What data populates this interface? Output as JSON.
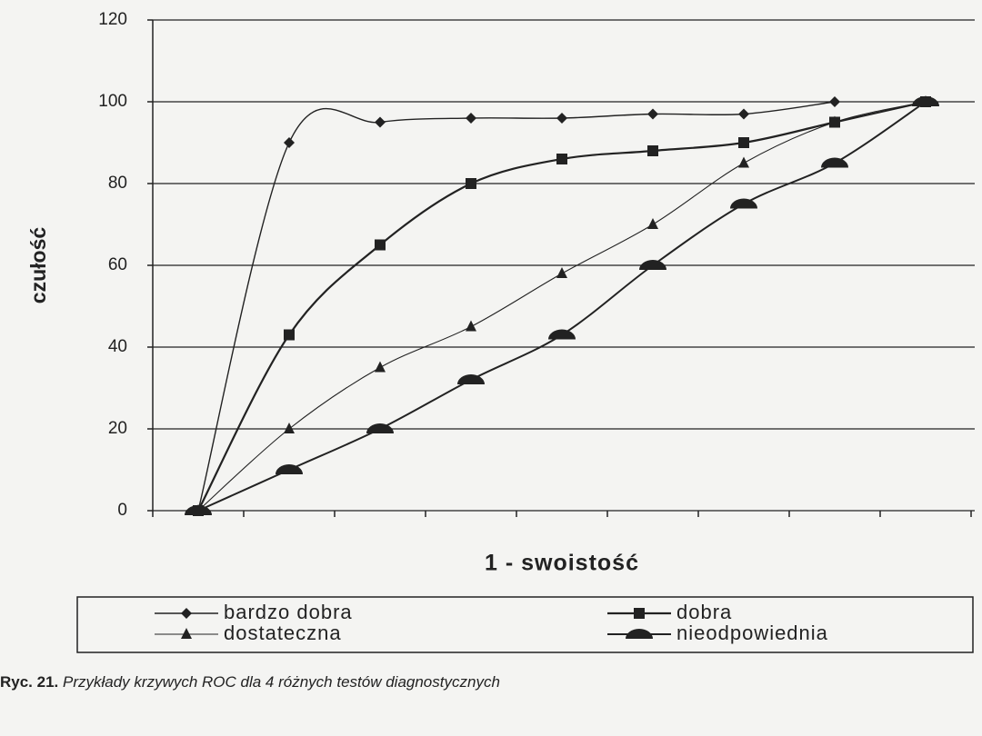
{
  "chart_data": {
    "type": "line",
    "x_label": "1 - swoistość",
    "y_label": "czułość",
    "categories": [
      null,
      null,
      null,
      null,
      null,
      null,
      null,
      null,
      null
    ],
    "series": [
      {
        "name": "bardzo dobra",
        "color": "#222222",
        "marker": "diamond",
        "values": [
          0,
          90,
          95,
          96,
          96,
          97,
          97,
          100,
          null
        ]
      },
      {
        "name": "dobra",
        "color": "#222222",
        "marker": "square",
        "values": [
          0,
          43,
          65,
          80,
          86,
          88,
          90,
          95,
          100
        ]
      },
      {
        "name": "dostateczna",
        "color": "#222222",
        "marker": "triangle",
        "values": [
          0,
          20,
          35,
          45,
          58,
          70,
          85,
          95,
          100
        ]
      },
      {
        "name": "nieodpowiednia",
        "color": "#222222",
        "marker": "dome",
        "values": [
          0,
          10,
          20,
          32,
          43,
          60,
          75,
          85,
          100
        ]
      }
    ],
    "ylim": [
      0,
      120
    ],
    "yticks": [
      0,
      20,
      40,
      60,
      80,
      100,
      120
    ],
    "grid": true
  },
  "caption": {
    "label": "Ryc. 21.",
    "text": "Przykłady krzywych ROC dla 4 różnych testów diagnostycznych"
  }
}
